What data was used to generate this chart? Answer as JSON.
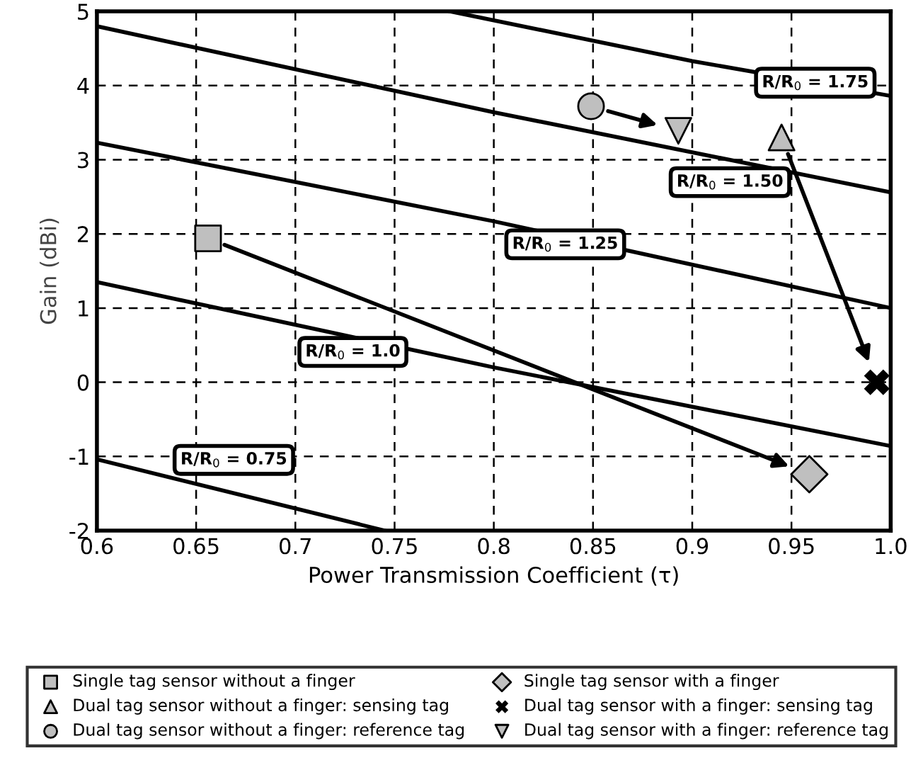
{
  "chart_data": {
    "type": "scatter",
    "xlabel": "Power Transmission Coefficient (τ)",
    "ylabel": "Gain (dBi)",
    "xlim": [
      0.6,
      1.0
    ],
    "ylim": [
      -2,
      5
    ],
    "xticks": [
      0.6,
      0.65,
      0.7,
      0.75,
      0.8,
      0.85,
      0.9,
      0.95,
      {
        "value": 1.0,
        "label": "1.0"
      }
    ],
    "yticks": [
      -2,
      -1,
      0,
      1,
      2,
      3,
      4,
      5
    ],
    "grid": true,
    "legend": "bottom",
    "series": [
      {
        "name": "Single tag sensor without a finger",
        "color": "#bfbfbf",
        "marker": "square",
        "x": [
          0.656
        ],
        "values": [
          1.94
        ]
      },
      {
        "name": "Single tag sensor with a finger",
        "color": "#bfbfbf",
        "marker": "diamond",
        "x": [
          0.959
        ],
        "values": [
          -1.24
        ]
      },
      {
        "name": "Dual tag sensor without a finger: sensing tag",
        "color": "#bfbfbf",
        "marker": "triangle",
        "x": [
          0.945
        ],
        "values": [
          3.3
        ]
      },
      {
        "name": "Dual tag sensor with a finger: sensing tag",
        "color": "#000000",
        "marker": "cross",
        "x": [
          0.993
        ],
        "values": [
          0.0
        ]
      },
      {
        "name": "Dual tag sensor without a finger: reference tag",
        "color": "#bfbfbf",
        "marker": "circle",
        "x": [
          0.849
        ],
        "values": [
          3.72
        ]
      },
      {
        "name": "Dual tag sensor with a finger: reference tag",
        "color": "#bfbfbf",
        "marker": "triangle_down",
        "x": [
          0.893
        ],
        "values": [
          3.39
        ]
      },
      {
        "type": "line",
        "name": "R/R$_{0}$ = 1.75",
        "color": "#000000",
        "x": [
          0.778,
          0.9,
          1.0
        ],
        "values": [
          5.0,
          4.33,
          3.86
        ]
      },
      {
        "type": "line",
        "name": "R/R$_{0}$ = 1.50",
        "color": "#000000",
        "x": [
          0.6,
          0.8,
          1.0
        ],
        "values": [
          4.8,
          3.64,
          2.56
        ]
      },
      {
        "type": "line",
        "name": "R/R$_{0}$ = 1.25",
        "color": "#000000",
        "x": [
          0.6,
          0.8,
          1.0
        ],
        "values": [
          3.23,
          2.17,
          1.0
        ]
      },
      {
        "type": "line",
        "name": "R/R$_{0}$ = 1.0",
        "color": "#000000",
        "x": [
          0.6,
          0.8,
          1.0
        ],
        "values": [
          1.35,
          0.2,
          -0.86
        ]
      },
      {
        "type": "line",
        "name": "R/R$_{0}$ = 0.75",
        "color": "#000000",
        "x": [
          0.6,
          0.745
        ],
        "values": [
          -1.04,
          -2.0
        ]
      }
    ]
  }
}
